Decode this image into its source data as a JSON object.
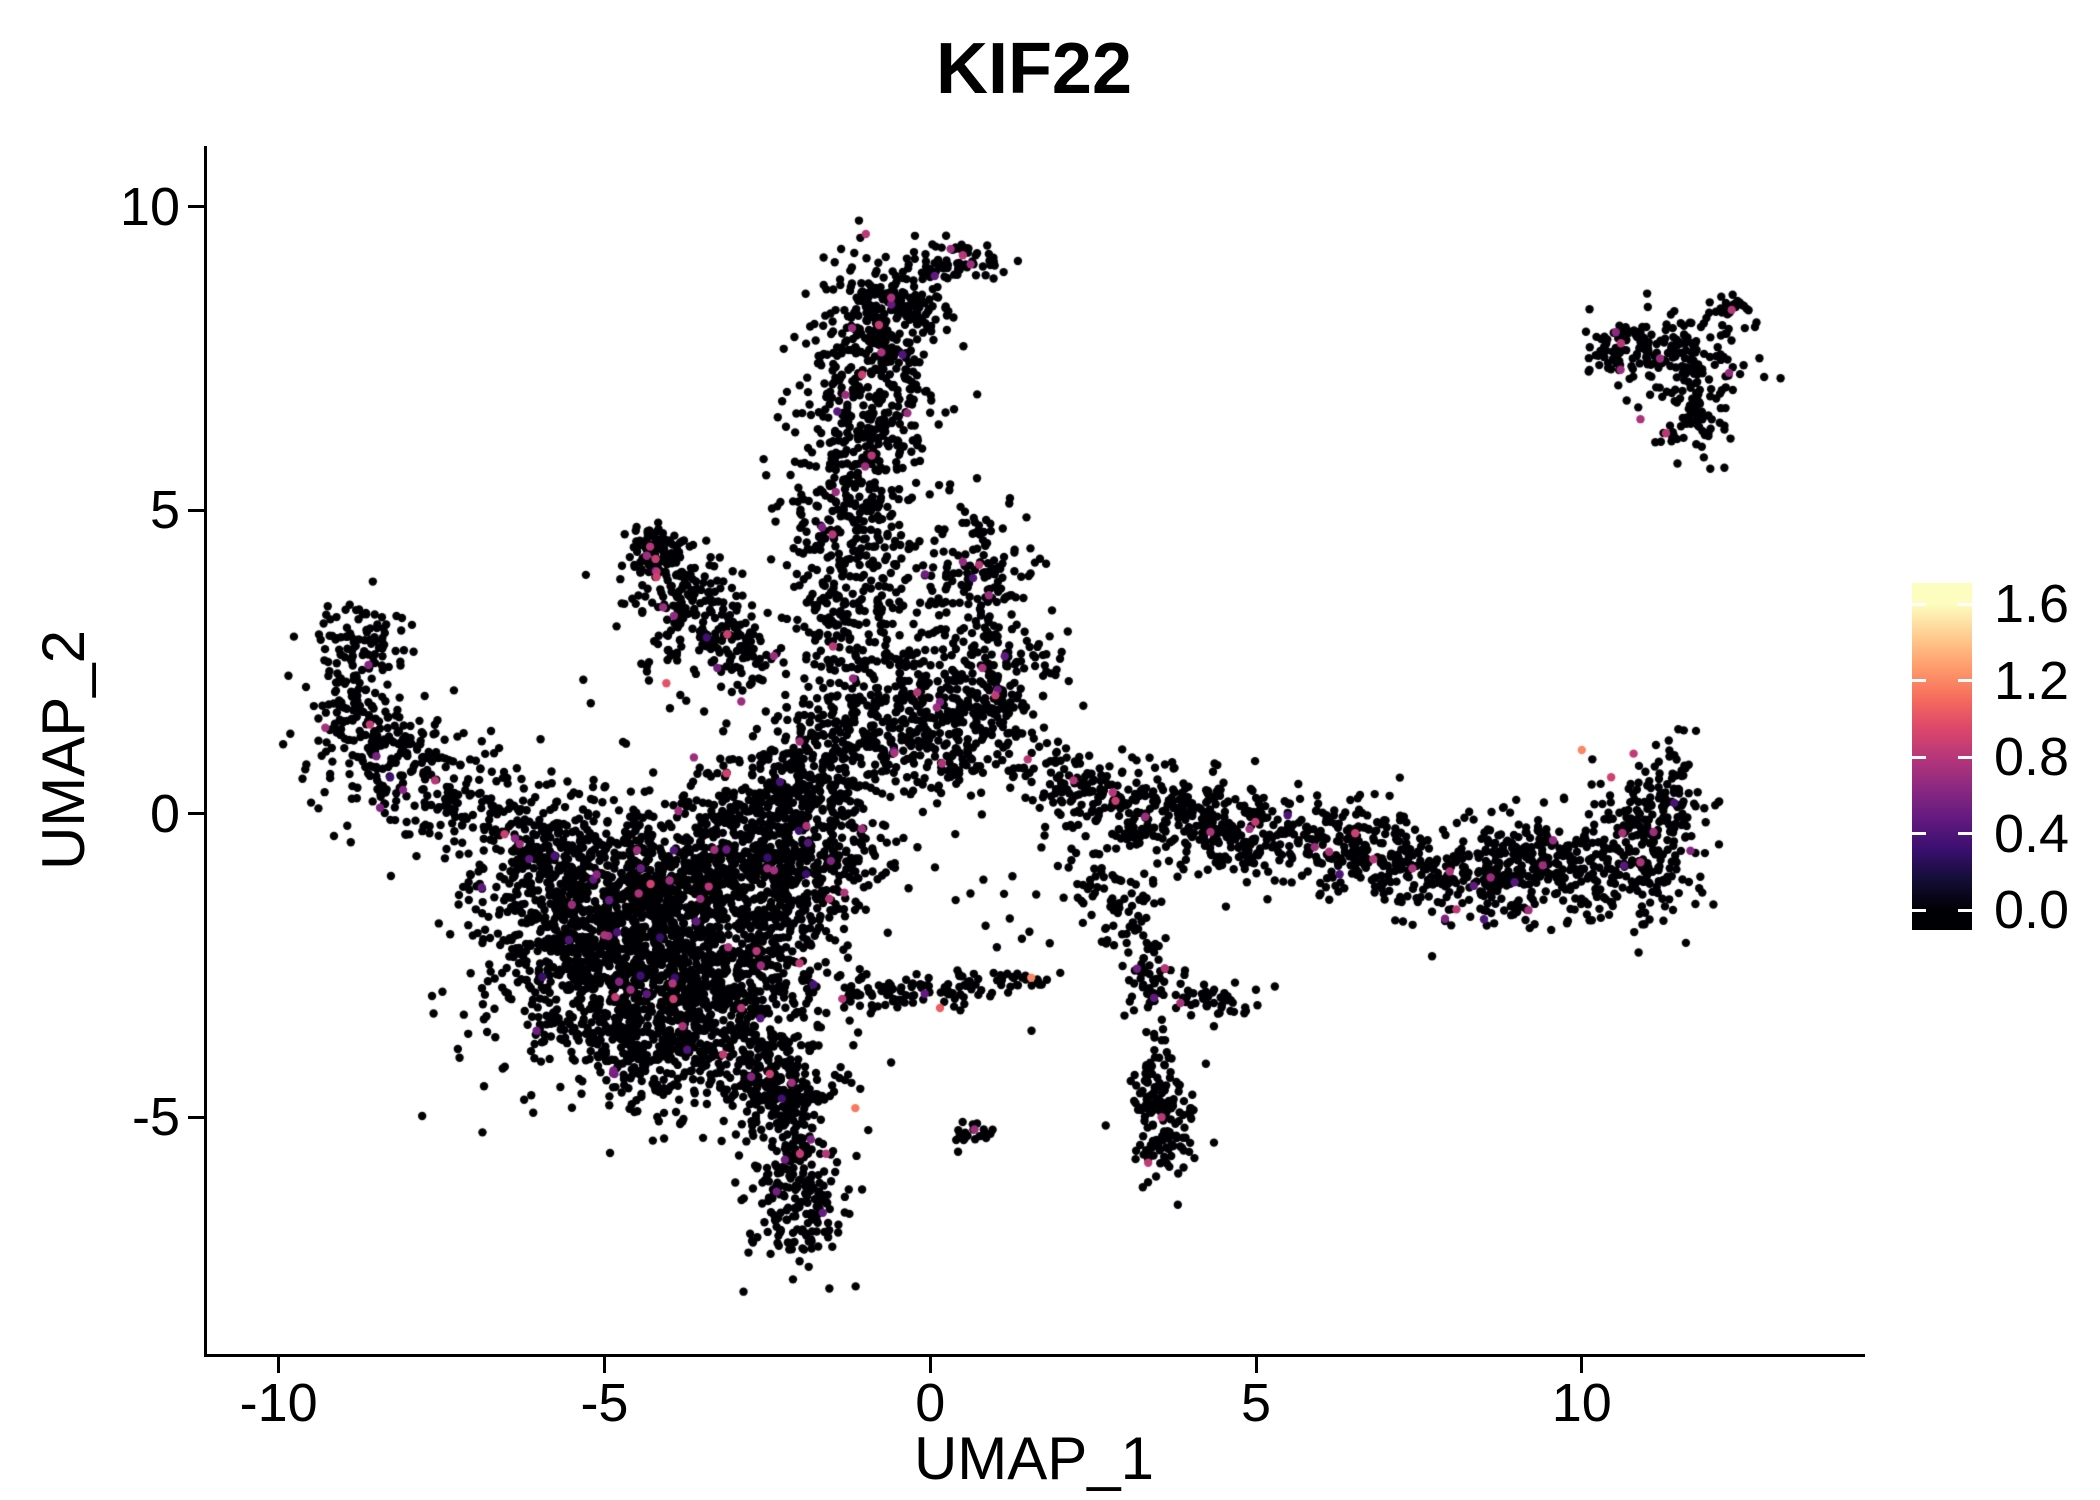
{
  "chart_data": {
    "type": "scatter",
    "title": "KIF22",
    "xlabel": "UMAP_1",
    "ylabel": "UMAP_2",
    "xlim": [
      -11.1,
      14.3
    ],
    "ylim": [
      -8.9,
      11.0
    ],
    "x_ticks": [
      -10,
      -5,
      0,
      5,
      10
    ],
    "x_tick_labels": [
      "-10",
      "-5",
      "0",
      "5",
      "10"
    ],
    "y_ticks": [
      -5,
      0,
      5,
      10
    ],
    "y_tick_labels": [
      "-5",
      "0",
      "5",
      "10"
    ],
    "grid": false,
    "legend_position": "right",
    "panel_background": "#ffffff",
    "axis_color": "#000000",
    "point_radius_px": 4.2,
    "seed": 20,
    "colored_fraction": 0.015,
    "colored_value_range": [
      0.3,
      0.9
    ],
    "point_color_scale": {
      "name": "magma",
      "min": 0.0,
      "max": 1.6,
      "ticks": [
        1.6,
        1.2,
        0.8,
        0.4,
        0.0
      ],
      "tick_labels": [
        "1.6",
        "1.2",
        "0.8",
        "0.4",
        "0.0"
      ],
      "stops": [
        "#000004",
        "#140e36",
        "#3b0f70",
        "#641a80",
        "#8c2981",
        "#b73779",
        "#de4968",
        "#f7705c",
        "#fe9f6d",
        "#fecf92",
        "#fcfdbf"
      ]
    },
    "clusters_columns": [
      "cx",
      "cy",
      "sx",
      "sy",
      "n"
    ],
    "clusters": [
      [
        -4.3,
        -1.5,
        1.0,
        0.85,
        650
      ],
      [
        -4.9,
        -2.7,
        0.85,
        0.75,
        550
      ],
      [
        -3.5,
        -2.6,
        0.8,
        0.85,
        450
      ],
      [
        -3.0,
        -0.9,
        0.9,
        0.6,
        300
      ],
      [
        -5.6,
        -1.3,
        0.7,
        0.55,
        230
      ],
      [
        -4.2,
        -3.9,
        0.6,
        0.5,
        200
      ],
      [
        -2.7,
        -3.9,
        0.5,
        0.65,
        180
      ],
      [
        -4.3,
        -2.1,
        1.7,
        1.4,
        260
      ],
      [
        -2.3,
        -1.7,
        0.5,
        0.8,
        180
      ],
      [
        -5.9,
        -0.6,
        0.5,
        0.4,
        120
      ],
      [
        -2.15,
        -5.2,
        0.32,
        0.7,
        150
      ],
      [
        -1.95,
        -6.5,
        0.42,
        0.55,
        150
      ],
      [
        -2.4,
        -4.6,
        0.35,
        0.35,
        80
      ],
      [
        -2.1,
        0.4,
        0.6,
        0.5,
        150
      ],
      [
        -1.4,
        1.1,
        0.5,
        0.5,
        130
      ],
      [
        -2.7,
        0.1,
        0.55,
        0.45,
        130
      ],
      [
        -1.7,
        -0.6,
        0.5,
        0.5,
        140
      ],
      [
        -0.8,
        7.9,
        0.55,
        0.7,
        270
      ],
      [
        -1.0,
        6.3,
        0.5,
        0.75,
        210
      ],
      [
        -1.2,
        4.8,
        0.55,
        0.75,
        200
      ],
      [
        -1.1,
        3.3,
        0.6,
        0.75,
        180
      ],
      [
        -0.6,
        2.0,
        0.75,
        0.65,
        210
      ],
      [
        0.45,
        9.15,
        0.3,
        0.22,
        55
      ],
      [
        -0.3,
        8.6,
        0.35,
        0.3,
        70
      ],
      [
        0.8,
        3.9,
        0.4,
        0.6,
        130
      ],
      [
        0.9,
        2.2,
        0.5,
        0.55,
        150
      ],
      [
        0.3,
        1.5,
        0.75,
        0.4,
        140
      ],
      [
        0.6,
        0.8,
        0.5,
        0.3,
        50
      ],
      [
        -4.25,
        4.35,
        0.22,
        0.22,
        70
      ],
      [
        -4.0,
        4.0,
        0.28,
        0.3,
        60
      ],
      [
        -3.6,
        3.5,
        0.3,
        0.32,
        55
      ],
      [
        -3.2,
        3.0,
        0.3,
        0.32,
        50
      ],
      [
        -2.9,
        2.55,
        0.25,
        0.28,
        45
      ],
      [
        -3.8,
        3.1,
        0.5,
        0.6,
        70
      ],
      [
        -8.95,
        2.2,
        0.33,
        0.65,
        120
      ],
      [
        -8.5,
        1.2,
        0.5,
        0.5,
        110
      ],
      [
        -7.8,
        0.6,
        0.6,
        0.45,
        110
      ],
      [
        -6.9,
        0.0,
        0.6,
        0.4,
        90
      ],
      [
        -8.6,
        3.0,
        0.38,
        0.3,
        50
      ],
      [
        2.0,
        0.6,
        0.3,
        0.25,
        50
      ],
      [
        2.7,
        0.3,
        0.5,
        0.35,
        90
      ],
      [
        3.6,
        -0.1,
        0.55,
        0.38,
        130
      ],
      [
        4.6,
        -0.2,
        0.5,
        0.35,
        110
      ],
      [
        5.6,
        -0.45,
        0.6,
        0.35,
        120
      ],
      [
        6.7,
        -0.7,
        0.6,
        0.35,
        130
      ],
      [
        7.9,
        -0.95,
        0.7,
        0.4,
        160
      ],
      [
        9.0,
        -0.95,
        0.6,
        0.45,
        170
      ],
      [
        10.1,
        -0.9,
        0.6,
        0.5,
        170
      ],
      [
        11.1,
        -0.55,
        0.4,
        0.65,
        160
      ],
      [
        11.3,
        0.35,
        0.25,
        0.45,
        60
      ],
      [
        5.2,
        0.1,
        1.6,
        0.35,
        50
      ],
      [
        11.3,
        7.6,
        0.5,
        0.35,
        110
      ],
      [
        11.9,
        7.0,
        0.35,
        0.45,
        80
      ],
      [
        10.6,
        7.7,
        0.3,
        0.25,
        55
      ],
      [
        12.3,
        8.3,
        0.16,
        0.14,
        25
      ],
      [
        11.6,
        6.35,
        0.2,
        0.3,
        30
      ],
      [
        3.55,
        -5.1,
        0.26,
        0.5,
        130
      ],
      [
        3.45,
        -4.3,
        0.15,
        0.35,
        35
      ],
      [
        3.1,
        -1.7,
        0.25,
        0.5,
        45
      ],
      [
        3.35,
        -2.6,
        0.2,
        0.4,
        35
      ],
      [
        3.95,
        -2.95,
        0.35,
        0.22,
        30
      ],
      [
        4.55,
        -3.1,
        0.3,
        0.18,
        25
      ],
      [
        2.6,
        -1.1,
        0.35,
        0.35,
        30
      ],
      [
        -1.05,
        -3.1,
        0.25,
        0.25,
        35
      ],
      [
        -0.45,
        -2.95,
        0.3,
        0.15,
        28
      ],
      [
        0.2,
        -2.9,
        0.3,
        0.14,
        26
      ],
      [
        0.9,
        -2.8,
        0.3,
        0.14,
        22
      ],
      [
        1.5,
        -2.72,
        0.2,
        0.12,
        16
      ],
      [
        0.68,
        -5.25,
        0.15,
        0.12,
        24
      ],
      [
        -0.5,
        0.3,
        1.2,
        0.6,
        40
      ],
      [
        1.5,
        -1.5,
        0.8,
        0.6,
        20
      ]
    ],
    "highlights_columns": [
      "x",
      "y",
      "value"
    ],
    "highlights": [
      [
        1.55,
        -2.7,
        1.2
      ],
      [
        0.15,
        -3.2,
        1.05
      ],
      [
        -1.15,
        -4.85,
        1.15
      ],
      [
        -1.6,
        -5.6,
        0.8
      ],
      [
        10.0,
        1.05,
        1.2
      ],
      [
        10.45,
        0.6,
        0.9
      ],
      [
        -4.05,
        2.15,
        1.0
      ],
      [
        -4.3,
        4.4,
        0.8
      ],
      [
        -4.35,
        4.25,
        0.7
      ],
      [
        0.5,
        9.2,
        0.8
      ],
      [
        0.62,
        9.05,
        0.7
      ],
      [
        -0.9,
        5.9,
        0.8
      ],
      [
        -1.0,
        5.72,
        0.7
      ],
      [
        0.75,
        4.1,
        0.8
      ],
      [
        0.9,
        3.6,
        0.7
      ],
      [
        0.8,
        2.4,
        0.75
      ],
      [
        -0.2,
        2.0,
        0.8
      ],
      [
        -2.9,
        1.85,
        0.7
      ],
      [
        -3.4,
        -1.2,
        0.8
      ],
      [
        -4.0,
        -1.1,
        0.7
      ],
      [
        -3.1,
        -2.2,
        0.75
      ],
      [
        -4.5,
        -0.6,
        0.7
      ],
      [
        -2.9,
        -3.2,
        0.8
      ],
      [
        -7.6,
        0.55,
        0.8
      ],
      [
        -6.3,
        -0.5,
        0.7
      ],
      [
        -2.0,
        -5.6,
        0.85
      ],
      [
        -1.35,
        -3.05,
        0.8
      ],
      [
        2.8,
        0.35,
        0.8
      ],
      [
        3.3,
        -0.05,
        0.7
      ],
      [
        4.3,
        -0.3,
        0.75
      ],
      [
        5.9,
        -0.55,
        0.7
      ],
      [
        6.8,
        -0.75,
        0.8
      ],
      [
        8.6,
        -1.05,
        0.7
      ],
      [
        10.9,
        -0.8,
        0.75
      ],
      [
        3.6,
        -2.55,
        0.8
      ],
      [
        12.3,
        8.3,
        0.8
      ],
      [
        10.6,
        7.75,
        0.8
      ],
      [
        11.2,
        7.5,
        0.7
      ],
      [
        10.9,
        6.5,
        0.75
      ],
      [
        -1.3,
        6.9,
        0.7
      ],
      [
        -0.6,
        8.5,
        0.75
      ],
      [
        -1.5,
        4.6,
        0.8
      ],
      [
        2.2,
        0.55,
        0.8
      ],
      [
        -4.2,
        3.9,
        0.9
      ],
      [
        -4.1,
        3.4,
        0.7
      ],
      [
        -2.4,
        2.6,
        0.7
      ],
      [
        -1.9,
        -0.2,
        0.75
      ],
      [
        -2.5,
        -0.9,
        0.7
      ],
      [
        -1.55,
        -1.4,
        0.8
      ],
      [
        1.0,
        1.95,
        0.85
      ],
      [
        0.1,
        1.75,
        0.7
      ],
      [
        -1.05,
        -0.25,
        0.7
      ],
      [
        -0.55,
        1.0,
        0.75
      ],
      [
        -1.2,
        8.0,
        0.7
      ],
      [
        -0.75,
        7.6,
        0.75
      ],
      [
        -1.45,
        5.3,
        0.7
      ],
      [
        -0.35,
        6.6,
        0.7
      ],
      [
        -5.0,
        -2.0,
        0.75
      ],
      [
        -4.6,
        -2.9,
        0.7
      ],
      [
        -3.8,
        -3.5,
        0.75
      ],
      [
        -2.6,
        -2.5,
        0.7
      ],
      [
        -5.5,
        -1.5,
        0.7
      ],
      [
        11.1,
        -0.3,
        0.7
      ],
      [
        9.4,
        -0.85,
        0.7
      ],
      [
        7.4,
        -0.9,
        0.75
      ],
      [
        4.9,
        -0.25,
        0.7
      ],
      [
        3.55,
        -5.0,
        0.8
      ],
      [
        0.68,
        -5.2,
        0.7
      ]
    ]
  }
}
